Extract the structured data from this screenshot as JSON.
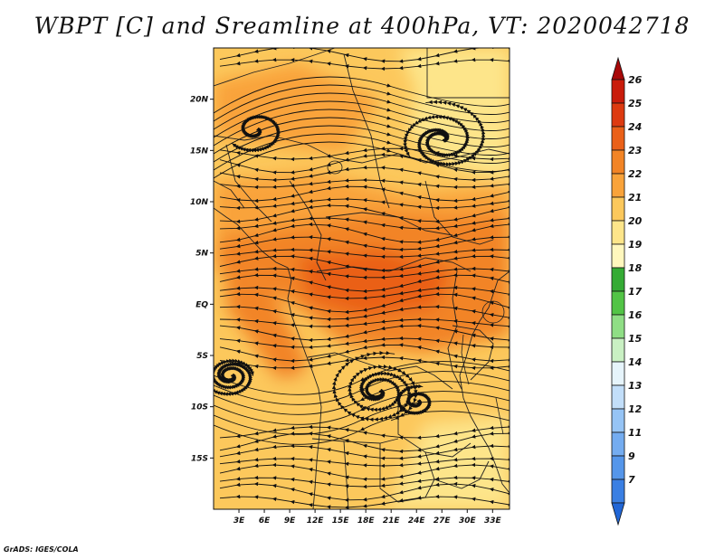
{
  "title": "WBPT [C] and Sreamline at 400hPa, VT: 2020042718",
  "credit": "GrADS: IGES/COLA",
  "map": {
    "lon_range": [
      0,
      35
    ],
    "lat_range": [
      -20,
      25
    ],
    "lat_ticks": [
      {
        "value": 20,
        "label": "20N"
      },
      {
        "value": 15,
        "label": "15N"
      },
      {
        "value": 10,
        "label": "10N"
      },
      {
        "value": 5,
        "label": "5N"
      },
      {
        "value": 0,
        "label": "EQ"
      },
      {
        "value": -5,
        "label": "5S"
      },
      {
        "value": -10,
        "label": "10S"
      },
      {
        "value": -15,
        "label": "15S"
      }
    ],
    "lon_ticks": [
      {
        "value": 3,
        "label": "3E"
      },
      {
        "value": 6,
        "label": "6E"
      },
      {
        "value": 9,
        "label": "9E"
      },
      {
        "value": 12,
        "label": "12E"
      },
      {
        "value": 15,
        "label": "15E"
      },
      {
        "value": 18,
        "label": "18E"
      },
      {
        "value": 21,
        "label": "21E"
      },
      {
        "value": 24,
        "label": "24E"
      },
      {
        "value": 27,
        "label": "27E"
      },
      {
        "value": 30,
        "label": "30E"
      },
      {
        "value": 33,
        "label": "33E"
      }
    ]
  },
  "colorbar": {
    "labels": [
      "7",
      "9",
      "11",
      "12",
      "13",
      "14",
      "15",
      "16",
      "17",
      "18",
      "19",
      "20",
      "21",
      "22",
      "23",
      "24",
      "25",
      "26"
    ],
    "colors": [
      "#2166d6",
      "#3a7fe3",
      "#5596ea",
      "#74acf0",
      "#96c4f5",
      "#c2def9",
      "#e6f4fb",
      "#c9f0c3",
      "#8fde85",
      "#52c446",
      "#34ab34",
      "#fff7bd",
      "#fde58a",
      "#fcc85c",
      "#f9a33a",
      "#f28425",
      "#ea6018",
      "#dd3a10",
      "#c91c0b",
      "#a80808"
    ]
  },
  "wbpt_field": {
    "units": "C",
    "level": "400hPa",
    "features": [
      {
        "region": "Sahel band north (15N-22N, 3E-20E)",
        "value_range": [
          20,
          21
        ]
      },
      {
        "region": "Northeast Sudan / Egypt (15N-25N, 25E-35E)",
        "value_range": [
          19,
          20
        ]
      },
      {
        "region": "Central band (5N-10N)",
        "value_range": [
          21,
          22
        ]
      },
      {
        "region": "Equatorial core (0-8N, 15E-33E)",
        "value_range": [
          22,
          23
        ]
      },
      {
        "region": "Gulf of Guinea diagonal (2N-8N, 0-12E)",
        "value_range": [
          22,
          23
        ]
      },
      {
        "region": "Southern Africa (8S-20S)",
        "value_range": [
          20,
          21
        ]
      }
    ]
  },
  "streamlines": {
    "features": [
      {
        "type": "easterly flow",
        "region": "10S-20S"
      },
      {
        "type": "cyclonic swirl",
        "region": "10S, 20E"
      },
      {
        "type": "cyclonic swirl",
        "region": "8S, 2E"
      },
      {
        "type": "anticyclonic swirl",
        "region": "17N, 27E"
      },
      {
        "type": "easterly flow",
        "region": "0-10N"
      }
    ]
  }
}
